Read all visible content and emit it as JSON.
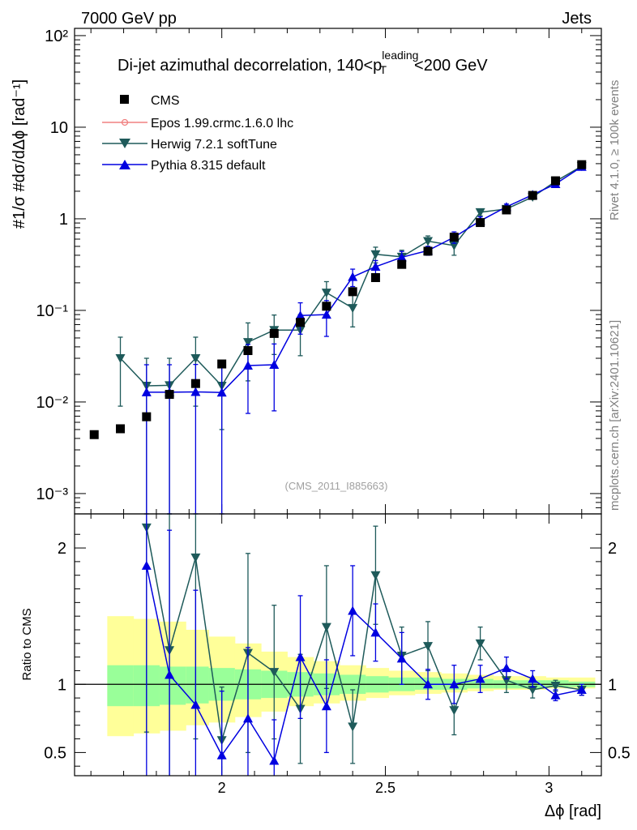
{
  "header": {
    "left": "7000 GeV pp",
    "right": "Jets"
  },
  "side_labels": {
    "top": "Rivet 4.1.0, ≥ 100k events",
    "bottom": "mcplots.cern.ch [arXiv:2401.10621]"
  },
  "chart_data": {
    "type": "scatter",
    "title_parts": {
      "pre": "Di-jet azimuthal decorrelation, 140<p",
      "sup": "leading",
      "sub": "T",
      "post": "<200 GeV"
    },
    "watermark": "(CMS_2011_I885663)",
    "xlabel": "Δϕ [rad]",
    "ylabel": "#1/σ #dσ/dΔϕ [rad⁻¹]",
    "ratio_ylabel": "Ratio to CMS",
    "xlim": [
      1.55,
      3.16
    ],
    "ylim": [
      0.0006,
      120
    ],
    "ratio_ylim": [
      0.33,
      2.25
    ],
    "x_ticks": [
      "2",
      "2.5",
      "3"
    ],
    "y_ticks": [
      "10⁻³",
      "10⁻²",
      "10⁻¹",
      "1",
      "10",
      "10²"
    ],
    "ratio_ticks": [
      "0.5",
      "1",
      "2"
    ],
    "legend": [
      "CMS",
      "Epos 1.99.crmc.1.6.0 lhc",
      "Herwig 7.2.1 softTune",
      "Pythia 8.315 default"
    ],
    "cms": {
      "x": [
        1.61,
        1.69,
        1.77,
        1.84,
        1.92,
        2.0,
        2.08,
        2.16,
        2.24,
        2.32,
        2.4,
        2.47,
        2.55,
        2.63,
        2.71,
        2.79,
        2.87,
        2.95,
        3.02,
        3.1
      ],
      "y": [
        0.0044,
        0.0051,
        0.0069,
        0.0121,
        0.0159,
        0.026,
        0.0364,
        0.056,
        0.074,
        0.111,
        0.16,
        0.228,
        0.318,
        0.443,
        0.63,
        0.91,
        1.25,
        1.8,
        2.6,
        3.9
      ]
    },
    "herwig": {
      "x": [
        1.69,
        1.77,
        1.84,
        1.92,
        2.0,
        2.08,
        2.16,
        2.24,
        2.32,
        2.4,
        2.47,
        2.55,
        2.63,
        2.71,
        2.79,
        2.87,
        2.95,
        3.02,
        3.1
      ],
      "y": [
        0.03,
        0.015,
        0.0152,
        0.03,
        0.015,
        0.045,
        0.061,
        0.061,
        0.156,
        0.106,
        0.41,
        0.384,
        0.57,
        0.51,
        1.18,
        1.28,
        1.73,
        2.56,
        3.75
      ],
      "err": [
        0.021,
        0.015,
        0.0148,
        0.021,
        0.01,
        0.028,
        0.028,
        0.029,
        0.05,
        0.04,
        0.08,
        0.07,
        0.08,
        0.11,
        0.1,
        0.12,
        0.1,
        0.1,
        0.12
      ]
    },
    "pythia": {
      "x": [
        1.77,
        1.84,
        1.92,
        2.0,
        2.08,
        2.16,
        2.24,
        2.32,
        2.4,
        2.47,
        2.55,
        2.63,
        2.71,
        2.79,
        2.87,
        2.95,
        3.02,
        3.1
      ],
      "y": [
        0.0128,
        0.0128,
        0.0129,
        0.0127,
        0.025,
        0.0255,
        0.088,
        0.09,
        0.232,
        0.3,
        0.38,
        0.45,
        0.63,
        0.95,
        1.35,
        1.83,
        2.4,
        3.7
      ],
      "err": [
        0.0127,
        0.0127,
        0.0128,
        0.0126,
        0.0175,
        0.0175,
        0.033,
        0.038,
        0.05,
        0.05,
        0.06,
        0.05,
        0.09,
        0.1,
        0.1,
        0.1,
        0.1,
        0.1
      ]
    },
    "ratio": {
      "herwig": [
        2.15,
        1.25,
        1.93,
        0.59,
        1.23,
        1.09,
        0.82,
        1.42,
        0.69,
        1.8,
        1.21,
        1.28,
        0.81,
        1.3,
        1.03,
        0.96,
        0.99,
        0.96
      ],
      "herwig_err": [
        1.5,
        1.25,
        1.33,
        0.39,
        0.73,
        0.49,
        0.4,
        0.45,
        0.27,
        0.36,
        0.21,
        0.18,
        0.18,
        0.12,
        0.09,
        0.06,
        0.04,
        0.04
      ],
      "pythia": [
        1.87,
        1.07,
        0.85,
        0.48,
        0.75,
        0.44,
        1.2,
        0.84,
        1.54,
        1.38,
        1.19,
        1.0,
        1.0,
        1.04,
        1.12,
        1.04,
        0.92,
        0.96
      ],
      "pythia_err": [
        1.84,
        1.06,
        0.84,
        0.47,
        0.52,
        0.3,
        0.45,
        0.34,
        0.33,
        0.21,
        0.19,
        0.11,
        0.14,
        0.1,
        0.08,
        0.06,
        0.04,
        0.04
      ],
      "band_edges": [
        1.65,
        1.73,
        1.81,
        1.89,
        1.96,
        2.04,
        2.12,
        2.2,
        2.28,
        2.36,
        2.44,
        2.51,
        2.59,
        2.67,
        2.75,
        2.83,
        2.91,
        2.99,
        3.06,
        3.14
      ],
      "band_low": [
        0.62,
        0.64,
        0.66,
        0.7,
        0.72,
        0.76,
        0.8,
        0.84,
        0.86,
        0.88,
        0.9,
        0.92,
        0.93,
        0.94,
        0.95,
        0.96,
        0.96,
        0.97,
        0.97
      ],
      "band_high": [
        1.5,
        1.48,
        1.46,
        1.4,
        1.35,
        1.3,
        1.24,
        1.2,
        1.17,
        1.14,
        1.12,
        1.1,
        1.09,
        1.08,
        1.07,
        1.06,
        1.06,
        1.05,
        1.05
      ],
      "green_low": [
        0.84,
        0.84,
        0.85,
        0.86,
        0.88,
        0.89,
        0.9,
        0.91,
        0.92,
        0.93,
        0.94,
        0.95,
        0.96,
        0.96,
        0.97,
        0.97,
        0.97,
        0.98,
        0.98
      ],
      "green_high": [
        1.14,
        1.14,
        1.13,
        1.13,
        1.12,
        1.11,
        1.1,
        1.09,
        1.08,
        1.07,
        1.06,
        1.05,
        1.05,
        1.04,
        1.04,
        1.03,
        1.03,
        1.03,
        1.02
      ]
    },
    "colors": {
      "cms": "#000000",
      "epos": "#f08080",
      "herwig": "#1e5a5a",
      "pythia": "#0000e0",
      "band_yellow": "#ffff99",
      "band_green": "#99ff99"
    }
  }
}
